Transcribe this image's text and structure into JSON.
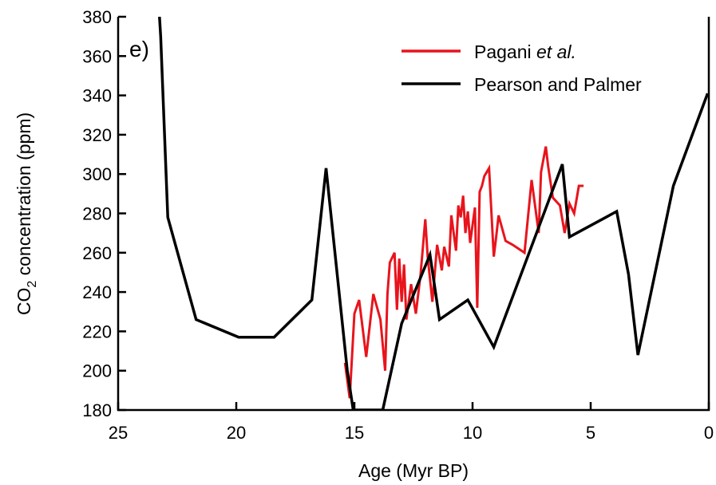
{
  "chart_data": {
    "type": "line",
    "panel_label": "e)",
    "xlabel": "Age (Myr BP)",
    "ylabel_main": "CO",
    "ylabel_sub": "2",
    "ylabel_rest": " concentration (ppm)",
    "xlim": [
      25,
      0
    ],
    "ylim": [
      180,
      380
    ],
    "x_reversed": true,
    "x_ticks": [
      25,
      20,
      15,
      10,
      5,
      0
    ],
    "y_ticks": [
      180,
      200,
      220,
      240,
      260,
      280,
      300,
      320,
      340,
      360,
      380
    ],
    "grid": false,
    "legend_position": "top-right",
    "series": [
      {
        "name": "Pagani ",
        "name_italic": "et al.",
        "color": "#e8141c",
        "x": [
          15.4,
          15.2,
          15.0,
          14.8,
          14.5,
          14.2,
          13.9,
          13.7,
          13.6,
          13.5,
          13.3,
          13.2,
          13.1,
          13.0,
          12.9,
          12.8,
          12.6,
          12.4,
          12.2,
          12.0,
          11.9,
          11.7,
          11.5,
          11.3,
          11.2,
          11.0,
          10.9,
          10.7,
          10.6,
          10.5,
          10.4,
          10.3,
          10.2,
          10.1,
          9.9,
          9.8,
          9.7,
          9.6,
          9.5,
          9.3,
          9.1,
          9.0,
          8.9,
          8.6,
          8.3,
          7.8,
          7.5,
          7.2,
          7.1,
          6.9,
          6.8,
          6.6,
          6.3,
          6.1,
          5.9,
          5.7,
          5.5,
          5.3
        ],
        "y": [
          204,
          186,
          229,
          236,
          207,
          239,
          226,
          200,
          239,
          255,
          260,
          231,
          257,
          235,
          254,
          226,
          244,
          229,
          249,
          277,
          258,
          235,
          264,
          251,
          263,
          253,
          279,
          261,
          284,
          278,
          289,
          270,
          281,
          265,
          283,
          232,
          291,
          294,
          299,
          303,
          258,
          268,
          279,
          266,
          264,
          260,
          297,
          270,
          301,
          314,
          304,
          288,
          284,
          270,
          285,
          280,
          294,
          294
        ]
      },
      {
        "name": "Pearson and Palmer",
        "color": "#000000",
        "x": [
          23.25,
          23.2,
          22.9,
          21.7,
          19.9,
          18.4,
          16.8,
          16.2,
          15.3,
          15.05,
          13.8,
          13.0,
          11.8,
          11.4,
          10.2,
          9.1,
          6.2,
          5.9,
          3.9,
          3.4,
          3.0,
          1.5,
          0.05
        ],
        "y": [
          380,
          370,
          278,
          226,
          217,
          217,
          236,
          303,
          200,
          180,
          180,
          224,
          259,
          226,
          236,
          212,
          305,
          268,
          281,
          249,
          208,
          294,
          341
        ]
      }
    ]
  }
}
